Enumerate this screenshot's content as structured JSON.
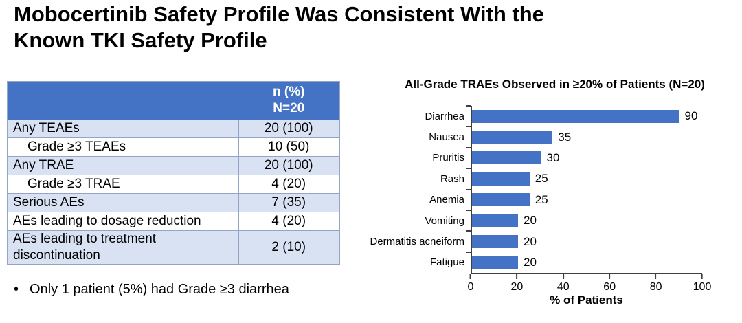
{
  "title": {
    "line1": "Mobocertinib Safety Profile Was Consistent With the",
    "line2": "Known TKI Safety Profile"
  },
  "table": {
    "header": {
      "col1": "",
      "col2_line1": "n (%)",
      "col2_line2": "N=20"
    },
    "rows": [
      {
        "label": "Any TEAEs",
        "value": "20 (100)"
      },
      {
        "label": "Grade ≥3 TEAEs",
        "value": "10 (50)"
      },
      {
        "label": "Any TRAE",
        "value": "20 (100)"
      },
      {
        "label": "Grade ≥3 TRAE",
        "value": "4 (20)"
      },
      {
        "label": "Serious AEs",
        "value": "7 (35)"
      },
      {
        "label": "AEs leading to dosage reduction",
        "value": "4 (20)"
      },
      {
        "label": "AEs leading to treatment discontinuation",
        "value": "2 (10)"
      }
    ]
  },
  "bullet": {
    "marker": "•",
    "text": "Only 1 patient (5%) had Grade ≥3 diarrhea"
  },
  "colors": {
    "table_header_bg": "#4472C4",
    "table_header_text": "#FFFFFF",
    "band_row_bg": "#D9E2F3",
    "table_border": "#95A4C3",
    "bar_color": "#4472C4",
    "axis_color": "#3F3F3F",
    "text_color": "#000000"
  },
  "chart_data": {
    "type": "bar",
    "orientation": "horizontal",
    "title": "All-Grade TRAEs Observed in ≥20% of Patients  (N=20)",
    "categories": [
      "Diarrhea",
      "Nausea",
      "Pruritis",
      "Rash",
      "Anemia",
      "Vomiting",
      "Dermatitis acneiform",
      "Fatigue"
    ],
    "values": [
      90,
      35,
      30,
      25,
      25,
      20,
      20,
      20
    ],
    "xlabel": "% of Patients",
    "ylabel": "",
    "xlim": [
      0,
      100
    ],
    "xticks": [
      0,
      20,
      40,
      60,
      80,
      100
    ],
    "grid": false,
    "legend": false,
    "data_labels": true
  }
}
